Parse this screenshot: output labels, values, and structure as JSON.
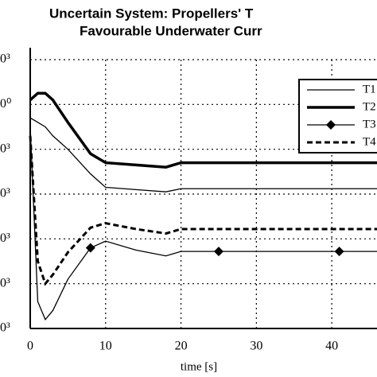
{
  "chart_data": {
    "type": "line",
    "title": "Uncertain System: Propellers' T",
    "subtitle": "Favourable Underwater Curr",
    "x_label": "time [s]",
    "x": [
      0,
      1,
      2,
      3,
      5,
      8,
      10,
      14,
      18,
      20,
      25,
      41,
      46
    ],
    "series": [
      {
        "name": "T1",
        "color": "#000000",
        "values": [
          1.7,
          1.6,
          1.5,
          1.3,
          1.0,
          0.45,
          0.15,
          0.1,
          0.05,
          0.12,
          0.12,
          0.12,
          0.12
        ]
      },
      {
        "name": "T2",
        "color": "#000000",
        "values": [
          2.1,
          2.25,
          2.25,
          2.1,
          1.6,
          0.9,
          0.7,
          0.65,
          0.6,
          0.7,
          0.7,
          0.7,
          0.7
        ]
      },
      {
        "name": "T3",
        "color": "#000000",
        "values": [
          1.5,
          -2.4,
          -2.8,
          -2.6,
          -1.9,
          -1.2,
          -1.05,
          -1.25,
          -1.38,
          -1.28,
          -1.28,
          -1.28,
          -1.28
        ]
      },
      {
        "name": "T4",
        "color": "#000000",
        "values": [
          1.3,
          -1.5,
          -2.0,
          -1.8,
          -1.3,
          -0.75,
          -0.65,
          -0.78,
          -0.88,
          -0.78,
          -0.78,
          -0.78,
          -0.78
        ]
      }
    ],
    "xlim": [
      0,
      46
    ],
    "xticks": [
      0,
      10,
      20,
      30,
      40
    ],
    "ylim": [
      -3,
      3
    ],
    "yticks": [
      {
        "value": 3,
        "label": "0³"
      },
      {
        "value": 2,
        "label": "0⁰"
      },
      {
        "value": 1,
        "label": "0³"
      },
      {
        "value": 0,
        "label": "0³"
      },
      {
        "value": -1,
        "label": "0³"
      },
      {
        "value": -2,
        "label": "0³"
      },
      {
        "value": -3,
        "label": "0³"
      }
    ],
    "grid": true,
    "legend": "upper right"
  }
}
